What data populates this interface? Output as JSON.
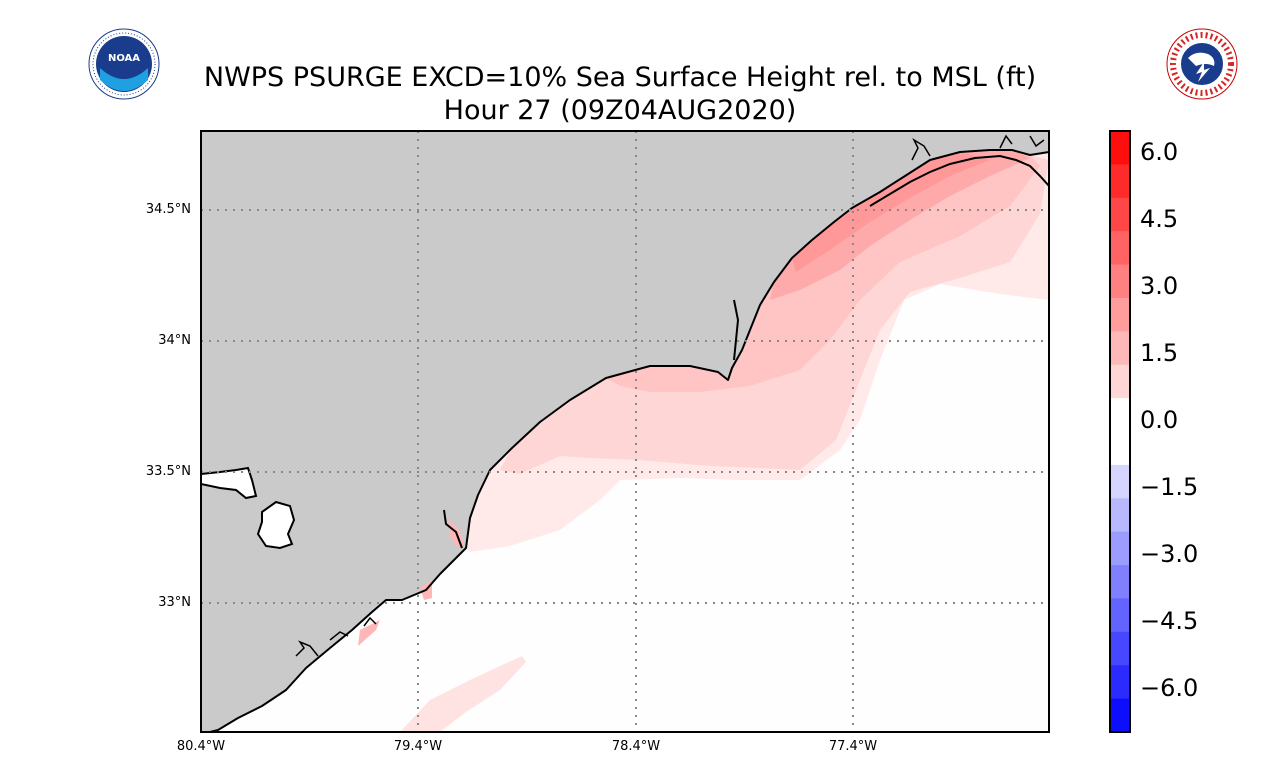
{
  "title": {
    "line1": "NWPS PSURGE EXCD=10% Sea Surface Height rel. to MSL (ft)",
    "line2": "Hour 27 (09Z04AUG2020)"
  },
  "logos": {
    "left": {
      "text": "NOAA",
      "icon": "noaa-logo"
    },
    "right": {
      "text": "NATIONAL WEATHER SERVICE",
      "icon": "nws-logo"
    }
  },
  "map": {
    "lat_labels": [
      "34.5°N",
      "34°N",
      "33.5°N",
      "33°N"
    ],
    "lon_labels": [
      "80.4°W",
      "79.4°W",
      "78.4°W",
      "77.4°W"
    ],
    "land_color": "#cacaca",
    "coast_color": "#000000",
    "grid": "dotted"
  },
  "colorbar": {
    "ticks": [
      "6.0",
      "4.5",
      "3.0",
      "1.5",
      "0.0",
      "−1.5",
      "−3.0",
      "−4.5",
      "−6.0"
    ],
    "range": [
      -6.75,
      6.75
    ],
    "step": 0.75,
    "colors": {
      "high": "#ff0000",
      "zero": "#ffffff",
      "low": "#0000ff"
    }
  }
}
